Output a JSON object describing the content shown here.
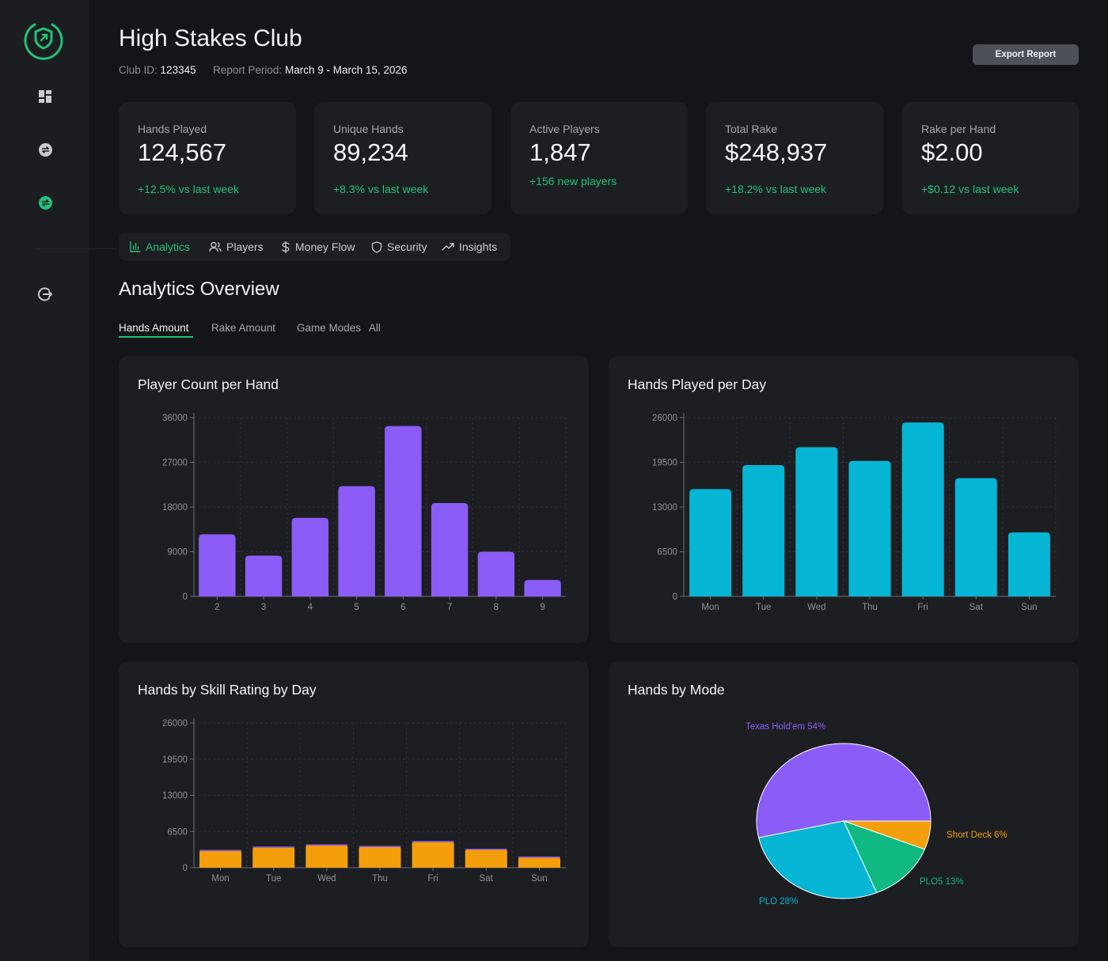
{
  "header": {
    "title": "High Stakes Club",
    "club_id_label": "Club ID:",
    "club_id": "123345",
    "period_label": "Report Period:",
    "period": "March 9 - March 15, 2026",
    "export_label": "Export Report"
  },
  "sidebar": {
    "items": [
      {
        "icon": "dashboard-icon"
      },
      {
        "icon": "transfer-icon"
      },
      {
        "icon": "transfer-active-icon"
      },
      {
        "icon": "logout-icon"
      }
    ],
    "accent": "#22c27a"
  },
  "stats": [
    {
      "label": "Hands Played",
      "value": "124,567",
      "change": "+12.5% vs last week"
    },
    {
      "label": "Unique Hands",
      "value": "89,234",
      "change": "+8.3% vs last week"
    },
    {
      "label": "Active Players",
      "value": "1,847",
      "change": "+156 new players"
    },
    {
      "label": "Total Rake",
      "value": "$248,937",
      "change": "+18.2% vs last week"
    },
    {
      "label": "Rake per Hand",
      "value": "$2.00",
      "change": "+$0.12 vs last week"
    }
  ],
  "tabs": [
    {
      "label": "Analytics",
      "icon": "bar-chart-icon",
      "active": true
    },
    {
      "label": "Players",
      "icon": "users-icon"
    },
    {
      "label": "Money Flow",
      "icon": "dollar-icon"
    },
    {
      "label": "Security",
      "icon": "shield-icon"
    },
    {
      "label": "Insights",
      "icon": "trending-icon"
    }
  ],
  "section": {
    "title": "Analytics Overview",
    "subtabs": [
      "Hands Amount",
      "Rake Amount",
      "Game Modes"
    ],
    "game_modes_value": "All"
  },
  "chart_data": [
    {
      "type": "bar",
      "title": "Player Count per Hand",
      "categories": [
        "2",
        "3",
        "4",
        "5",
        "6",
        "7",
        "8",
        "9"
      ],
      "values": [
        12500,
        8200,
        15800,
        22200,
        34300,
        18800,
        9000,
        3300
      ],
      "ylim": [
        0,
        36000
      ],
      "yticks": [
        0,
        9000,
        18000,
        27000,
        36000
      ],
      "color": "#8b5cf6",
      "grid": true
    },
    {
      "type": "bar",
      "title": "Hands Played per Day",
      "categories": [
        "Mon",
        "Tue",
        "Wed",
        "Thu",
        "Fri",
        "Sat",
        "Sun"
      ],
      "values": [
        15600,
        19100,
        21700,
        19700,
        25300,
        17200,
        9300
      ],
      "ylim": [
        0,
        26000
      ],
      "yticks": [
        0,
        6500,
        13000,
        19500,
        26000
      ],
      "color": "#06b6d4",
      "grid": true
    },
    {
      "type": "bar",
      "title": "Hands by Skill Rating by Day",
      "categories": [
        "Mon",
        "Tue",
        "Wed",
        "Thu",
        "Fri",
        "Sat",
        "Sun"
      ],
      "series": [
        {
          "color": "#f59e0b",
          "values": [
            3000,
            3600,
            4000,
            3700,
            4600,
            3200,
            1800
          ]
        },
        {
          "color": "#8b5cf6",
          "values": [
            200,
            200,
            200,
            200,
            200,
            200,
            200
          ]
        }
      ],
      "ylim": [
        0,
        26000
      ],
      "yticks": [
        0,
        6500,
        13000,
        19500,
        26000
      ],
      "grid": true
    },
    {
      "type": "pie",
      "title": "Hands by Mode",
      "slices": [
        {
          "label": "Texas Hold'em 54%",
          "value": 54,
          "color": "#8b5cf6"
        },
        {
          "label": "Short Deck 6%",
          "value": 6,
          "color": "#f59e0b"
        },
        {
          "label": "PLO5 13%",
          "value": 13,
          "color": "#10b981"
        },
        {
          "label": "PLO 28%",
          "value": 28,
          "color": "#06b6d4"
        }
      ]
    }
  ]
}
